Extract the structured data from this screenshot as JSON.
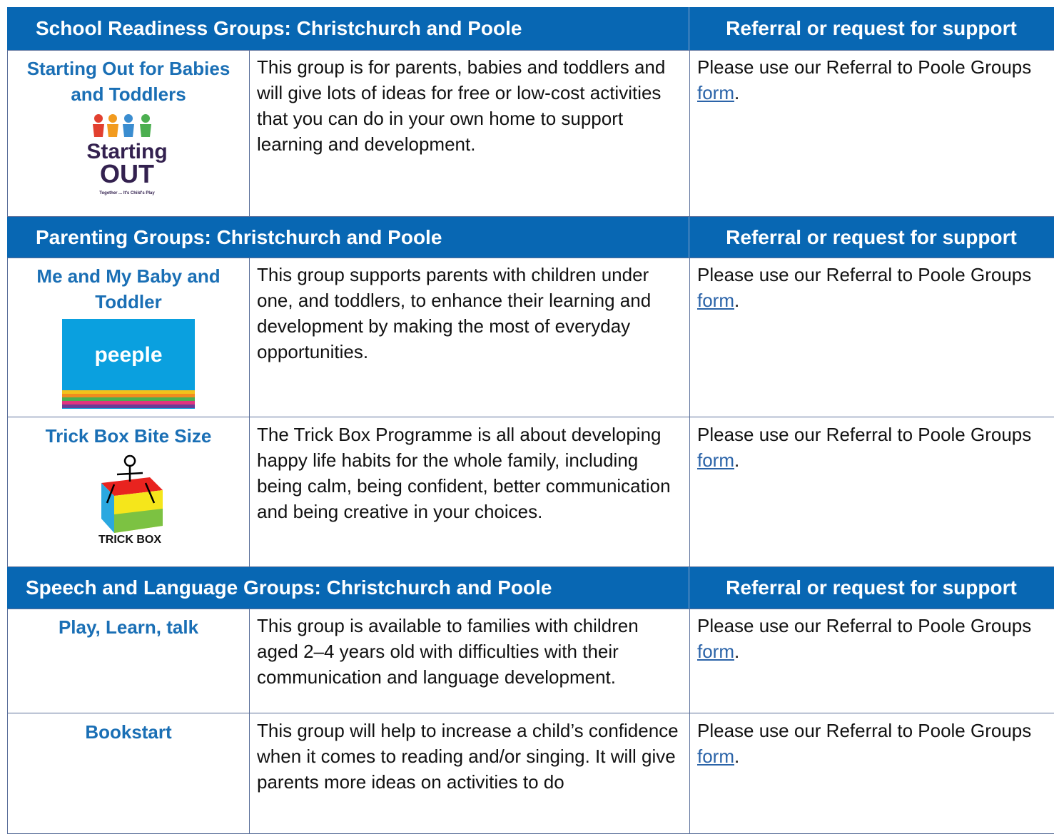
{
  "sections": [
    {
      "title": "School Readiness Groups: Christchurch and Poole",
      "referral_heading": "Referral or request for support",
      "rows": [
        {
          "name": "Starting Out for Babies and Toddlers",
          "logo": [
            "Starting",
            "OUT",
            "Together ... It's Child's Play"
          ],
          "description": "This group is for parents, babies and toddlers and will give lots of ideas for free or low-cost activities that you can do in your own home to support learning and development.",
          "referral": {
            "text": "Please use our Referral to Poole Groups ",
            "link": "form",
            "end": "."
          }
        }
      ]
    },
    {
      "title": "Parenting Groups: Christchurch and Poole",
      "referral_heading": "Referral or request for support",
      "rows": [
        {
          "name": "Me and My Baby and Toddler",
          "logo": [
            "peeple"
          ],
          "description": "This group supports parents with children under one, and toddlers, to enhance their learning and development by making the most of everyday opportunities.",
          "referral": {
            "text": "Please use our Referral to Poole Groups ",
            "link": "form",
            "end": "."
          }
        },
        {
          "name": "Trick Box Bite Size",
          "logo": [
            "TRICK BOX"
          ],
          "description": "The Trick Box Programme is all about developing happy life habits for the whole family, including being calm, being confident, better communication and being creative in your choices.",
          "referral": {
            "text": "Please use our Referral to Poole Groups ",
            "link": "form",
            "end": "."
          }
        }
      ]
    },
    {
      "title": "Speech and Language Groups: Christchurch and Poole",
      "referral_heading": "Referral or request for support",
      "rows": [
        {
          "name": "Play, Learn, talk",
          "description": "This group is available to families with children aged 2–4 years old with difficulties with their communication and language development.",
          "referral": {
            "text": "Please use our Referral to Poole Groups ",
            "link": "form",
            "end": "."
          }
        },
        {
          "name": "Bookstart",
          "description": "This group will help to increase a child’s confidence when it comes to reading and/or singing. It will give parents more ideas on activities to do",
          "referral": {
            "text": "Please use our Referral to Poole Groups ",
            "link": "form",
            "end": "."
          }
        }
      ]
    }
  ]
}
